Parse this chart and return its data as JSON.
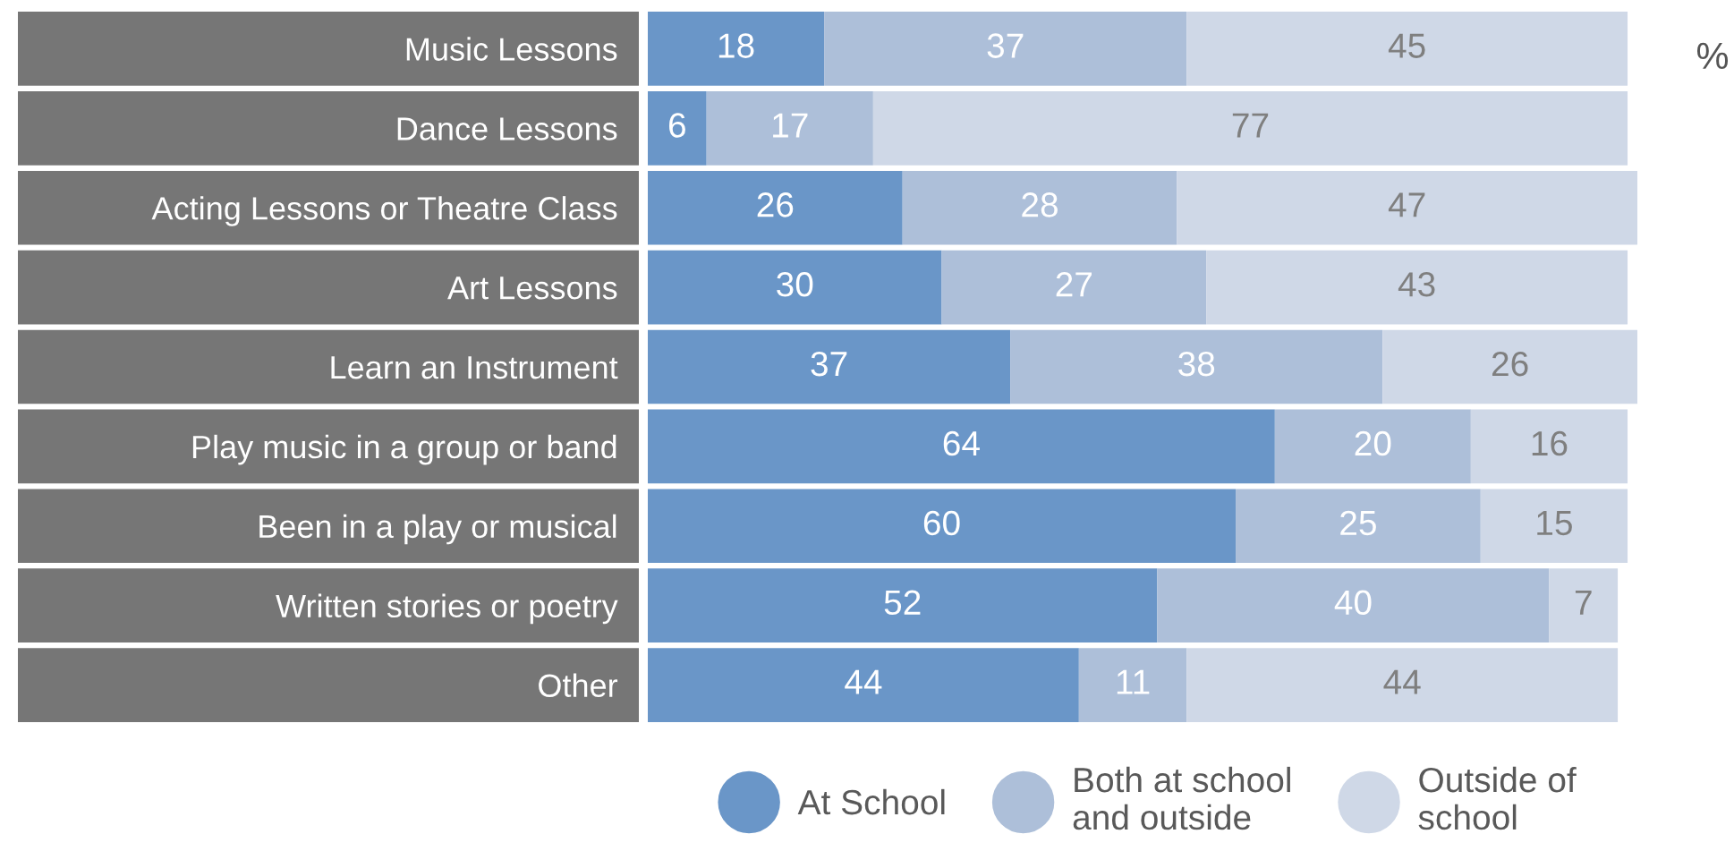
{
  "chart_data": {
    "type": "bar",
    "orientation": "horizontal",
    "stacked": true,
    "data_labels": true,
    "grid": false,
    "legend": "bottom",
    "categories": [
      "Music Lessons",
      "Dance Lessons",
      "Acting Lessons or Theatre Class",
      "Art Lessons",
      "Learn an Instrument",
      "Play music in a group or band",
      "Been in a play or musical",
      "Written stories or poetry",
      "Other"
    ],
    "series": [
      {
        "name": "At School",
        "color": "#6a96c8",
        "values": [
          18,
          6,
          26,
          30,
          37,
          64,
          60,
          52,
          44
        ]
      },
      {
        "name": "Both at school\nand outside",
        "color": "#adbfd9",
        "values": [
          37,
          17,
          28,
          27,
          38,
          20,
          25,
          40,
          11
        ]
      },
      {
        "name": "Outside of\nschool",
        "color": "#cfd8e7",
        "values": [
          45,
          77,
          47,
          43,
          26,
          16,
          15,
          7,
          44
        ]
      }
    ],
    "annotations": [
      "%"
    ]
  }
}
